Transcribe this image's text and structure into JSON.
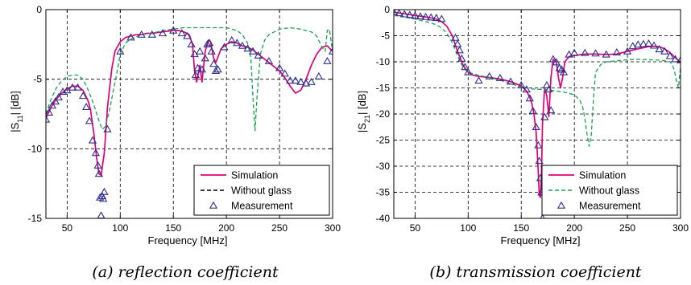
{
  "chart_data": [
    {
      "type": "line",
      "caption": "(a) reflection coefficient",
      "xlabel": "Frequency [MHz]",
      "ylabel_main": "|S",
      "ylabel_sub": "11",
      "ylabel_tail": "| [dB]",
      "xlim": [
        30,
        300
      ],
      "ylim": [
        -15,
        0
      ],
      "xticks": [
        50,
        100,
        150,
        200,
        250,
        300
      ],
      "yticks": [
        0,
        -5,
        -10,
        -15
      ],
      "grid": true,
      "legend_position": "bottom-right",
      "series": [
        {
          "name": "Simulation",
          "style": "solid",
          "color": "#e0007a",
          "x": [
            30,
            35,
            40,
            45,
            50,
            55,
            60,
            65,
            70,
            72,
            75,
            78,
            80,
            82,
            85,
            88,
            92,
            95,
            100,
            105,
            110,
            115,
            120,
            125,
            130,
            140,
            150,
            155,
            160,
            165,
            168,
            170,
            172,
            175,
            177,
            180,
            183,
            185,
            188,
            190,
            195,
            200,
            205,
            210,
            215,
            220,
            225,
            230,
            235,
            240,
            245,
            250,
            255,
            260,
            265,
            270,
            275,
            280,
            285,
            290,
            295,
            300
          ],
          "y": [
            -7.8,
            -7.0,
            -6.4,
            -6.0,
            -5.7,
            -5.5,
            -5.5,
            -5.8,
            -6.6,
            -7.2,
            -8.8,
            -10.8,
            -11.8,
            -11.9,
            -10.3,
            -7.0,
            -4.3,
            -3.0,
            -2.3,
            -2.0,
            -1.9,
            -1.8,
            -1.8,
            -1.7,
            -1.7,
            -1.6,
            -1.5,
            -1.5,
            -1.6,
            -1.8,
            -2.5,
            -4.4,
            -5.2,
            -4.0,
            -5.2,
            -3.0,
            -2.2,
            -2.3,
            -3.5,
            -3.8,
            -2.8,
            -2.5,
            -2.3,
            -2.4,
            -2.6,
            -2.7,
            -2.9,
            -3.2,
            -3.5,
            -3.8,
            -4.1,
            -4.4,
            -4.9,
            -5.5,
            -6.0,
            -5.8,
            -5.0,
            -4.0,
            -3.2,
            -2.7,
            -2.6,
            -3.0
          ]
        },
        {
          "name": "Without glass",
          "style": "dashed",
          "color": "#18a050",
          "x": [
            30,
            35,
            40,
            45,
            50,
            55,
            60,
            65,
            70,
            75,
            80,
            83,
            86,
            90,
            93,
            97,
            100,
            105,
            110,
            120,
            130,
            140,
            150,
            160,
            170,
            180,
            190,
            200,
            210,
            215,
            220,
            223,
            225,
            227,
            229,
            232,
            236,
            240,
            250,
            260,
            270,
            280,
            285,
            290,
            293,
            295,
            297,
            300
          ],
          "y": [
            -7.5,
            -6.4,
            -5.6,
            -5.1,
            -4.8,
            -4.7,
            -4.7,
            -5.0,
            -5.8,
            -6.8,
            -8.0,
            -8.6,
            -8.4,
            -7.2,
            -6.0,
            -4.5,
            -3.2,
            -2.4,
            -2.1,
            -1.8,
            -1.7,
            -1.5,
            -1.4,
            -1.3,
            -1.3,
            -1.3,
            -1.3,
            -1.3,
            -1.5,
            -1.8,
            -2.4,
            -3.5,
            -6.3,
            -8.7,
            -6.0,
            -3.2,
            -2.2,
            -1.8,
            -1.4,
            -1.3,
            -1.4,
            -1.6,
            -1.9,
            -2.7,
            -3.0,
            -1.5,
            -1.4,
            -3.0
          ]
        },
        {
          "name": "Measurement",
          "style": "marker",
          "color": "#2e2e8a",
          "x": [
            30,
            33,
            36,
            39,
            42,
            46,
            50,
            55,
            60,
            65,
            68,
            71,
            74,
            77,
            79,
            80,
            81,
            82,
            83,
            84,
            85,
            88,
            100,
            110,
            120,
            130,
            140,
            150,
            158,
            163,
            167,
            170,
            171,
            173,
            175,
            177,
            180,
            182,
            184,
            186,
            188,
            190,
            192,
            198,
            205,
            210,
            215,
            220,
            225,
            230,
            240,
            250,
            255,
            260,
            265,
            270,
            275,
            280,
            287,
            295,
            300
          ],
          "y": [
            -7.9,
            -7.4,
            -6.9,
            -6.6,
            -6.3,
            -5.9,
            -5.8,
            -5.6,
            -5.6,
            -6.2,
            -7.0,
            -8.0,
            -9.4,
            -10.3,
            -11.2,
            -11.8,
            -13.5,
            -14.8,
            -13.4,
            -13.6,
            -13.1,
            -8.6,
            -3.0,
            -2.0,
            -1.8,
            -1.8,
            -1.7,
            -1.5,
            -1.7,
            -1.9,
            -2.5,
            -3.2,
            -4.7,
            -4.2,
            -3.0,
            -4.3,
            -3.5,
            -2.5,
            -2.4,
            -3.0,
            -3.9,
            -4.4,
            -4.3,
            -2.7,
            -2.2,
            -2.4,
            -2.6,
            -2.8,
            -3.0,
            -3.3,
            -3.7,
            -4.2,
            -4.6,
            -5.1,
            -5.1,
            -5.2,
            -5.3,
            -5.2,
            -4.8,
            -3.7,
            -3.0
          ]
        }
      ]
    },
    {
      "type": "line",
      "caption": "(b) transmission coefficient",
      "xlabel": "Frequency [MHz]",
      "ylabel_main": "|S",
      "ylabel_sub": "21",
      "ylabel_tail": "| [dB]",
      "xlim": [
        30,
        300
      ],
      "ylim": [
        -40,
        0
      ],
      "xticks": [
        50,
        100,
        150,
        200,
        250,
        300
      ],
      "yticks": [
        0,
        -5,
        -10,
        -15,
        -20,
        -25,
        -30,
        -35,
        -40
      ],
      "grid": true,
      "legend_position": "bottom-right",
      "series": [
        {
          "name": "Simulation",
          "style": "solid",
          "color": "#e0007a",
          "x": [
            30,
            40,
            50,
            60,
            70,
            75,
            80,
            85,
            88,
            90,
            93,
            95,
            98,
            100,
            105,
            110,
            120,
            130,
            140,
            150,
            155,
            158,
            160,
            162,
            164,
            165,
            166,
            167,
            168,
            169,
            170,
            172,
            174,
            176,
            178,
            180,
            183,
            185,
            187,
            189,
            191,
            195,
            200,
            210,
            220,
            230,
            240,
            250,
            260,
            270,
            275,
            280,
            285,
            290,
            295,
            300
          ],
          "y": [
            -0.5,
            -0.8,
            -1.1,
            -1.4,
            -1.8,
            -2.3,
            -3.2,
            -5.0,
            -6.8,
            -8.0,
            -9.5,
            -10.5,
            -11.5,
            -12.0,
            -12.6,
            -12.8,
            -13.0,
            -13.3,
            -13.8,
            -14.6,
            -15.6,
            -16.8,
            -18.0,
            -20.0,
            -23.5,
            -27.0,
            -31.0,
            -35.5,
            -36.0,
            -32.0,
            -22.0,
            -15.0,
            -16.5,
            -20.5,
            -13.0,
            -9.5,
            -10.0,
            -13.0,
            -15.0,
            -13.0,
            -10.0,
            -9.0,
            -8.8,
            -8.5,
            -8.5,
            -8.6,
            -8.5,
            -8.0,
            -7.5,
            -7.1,
            -7.0,
            -7.1,
            -7.5,
            -8.2,
            -9.2,
            -10.1
          ]
        },
        {
          "name": "Without glass",
          "style": "dashed",
          "color": "#18a050",
          "x": [
            30,
            40,
            50,
            60,
            70,
            75,
            80,
            85,
            90,
            95,
            100,
            110,
            120,
            130,
            140,
            150,
            160,
            170,
            180,
            190,
            200,
            205,
            208,
            210,
            212,
            214,
            216,
            218,
            220,
            225,
            230,
            240,
            250,
            260,
            270,
            280,
            285,
            290,
            292,
            294,
            296,
            298,
            300
          ],
          "y": [
            -1.0,
            -1.4,
            -1.8,
            -2.3,
            -2.9,
            -3.5,
            -4.5,
            -6.3,
            -8.8,
            -11.0,
            -12.0,
            -12.6,
            -13.0,
            -13.5,
            -14.2,
            -14.8,
            -15.2,
            -15.3,
            -15.5,
            -15.8,
            -16.3,
            -17.3,
            -18.8,
            -21.0,
            -24.0,
            -26.2,
            -24.0,
            -17.0,
            -12.0,
            -10.5,
            -10.0,
            -9.8,
            -9.6,
            -9.5,
            -9.6,
            -9.7,
            -9.8,
            -10.0,
            -10.5,
            -11.5,
            -13.5,
            -15.0,
            -11.0
          ]
        },
        {
          "name": "Measurement",
          "style": "marker",
          "color": "#2e2e8a",
          "x": [
            30,
            35,
            40,
            45,
            50,
            55,
            60,
            65,
            70,
            75,
            88,
            90,
            92,
            94,
            97,
            100,
            110,
            120,
            130,
            140,
            150,
            155,
            158,
            161,
            164,
            166,
            167,
            168,
            169,
            170,
            172,
            174,
            176,
            178,
            180,
            183,
            186,
            188,
            190,
            195,
            200,
            210,
            220,
            230,
            240,
            250,
            255,
            260,
            265,
            270,
            275,
            280,
            285,
            290,
            295,
            300
          ],
          "y": [
            -0.5,
            -0.7,
            -0.9,
            -1.0,
            -1.2,
            -1.3,
            -1.4,
            -1.5,
            -1.6,
            -1.8,
            -5.4,
            -6.6,
            -7.8,
            -9.4,
            -11.0,
            -12.0,
            -13.6,
            -12.8,
            -13.1,
            -13.8,
            -14.5,
            -15.3,
            -17.0,
            -19.4,
            -22.5,
            -26.0,
            -29.0,
            -32.3,
            -35.0,
            -40.0,
            -20.6,
            -14.5,
            -15.3,
            -19.3,
            -9.5,
            -10.1,
            -11.2,
            -11.5,
            -12.0,
            -8.6,
            -8.3,
            -8.3,
            -8.4,
            -8.6,
            -8.2,
            -8.0,
            -7.0,
            -6.7,
            -6.6,
            -6.5,
            -6.9,
            -7.6,
            -8.0,
            -8.9,
            -9.5,
            -9.7
          ]
        }
      ]
    }
  ]
}
